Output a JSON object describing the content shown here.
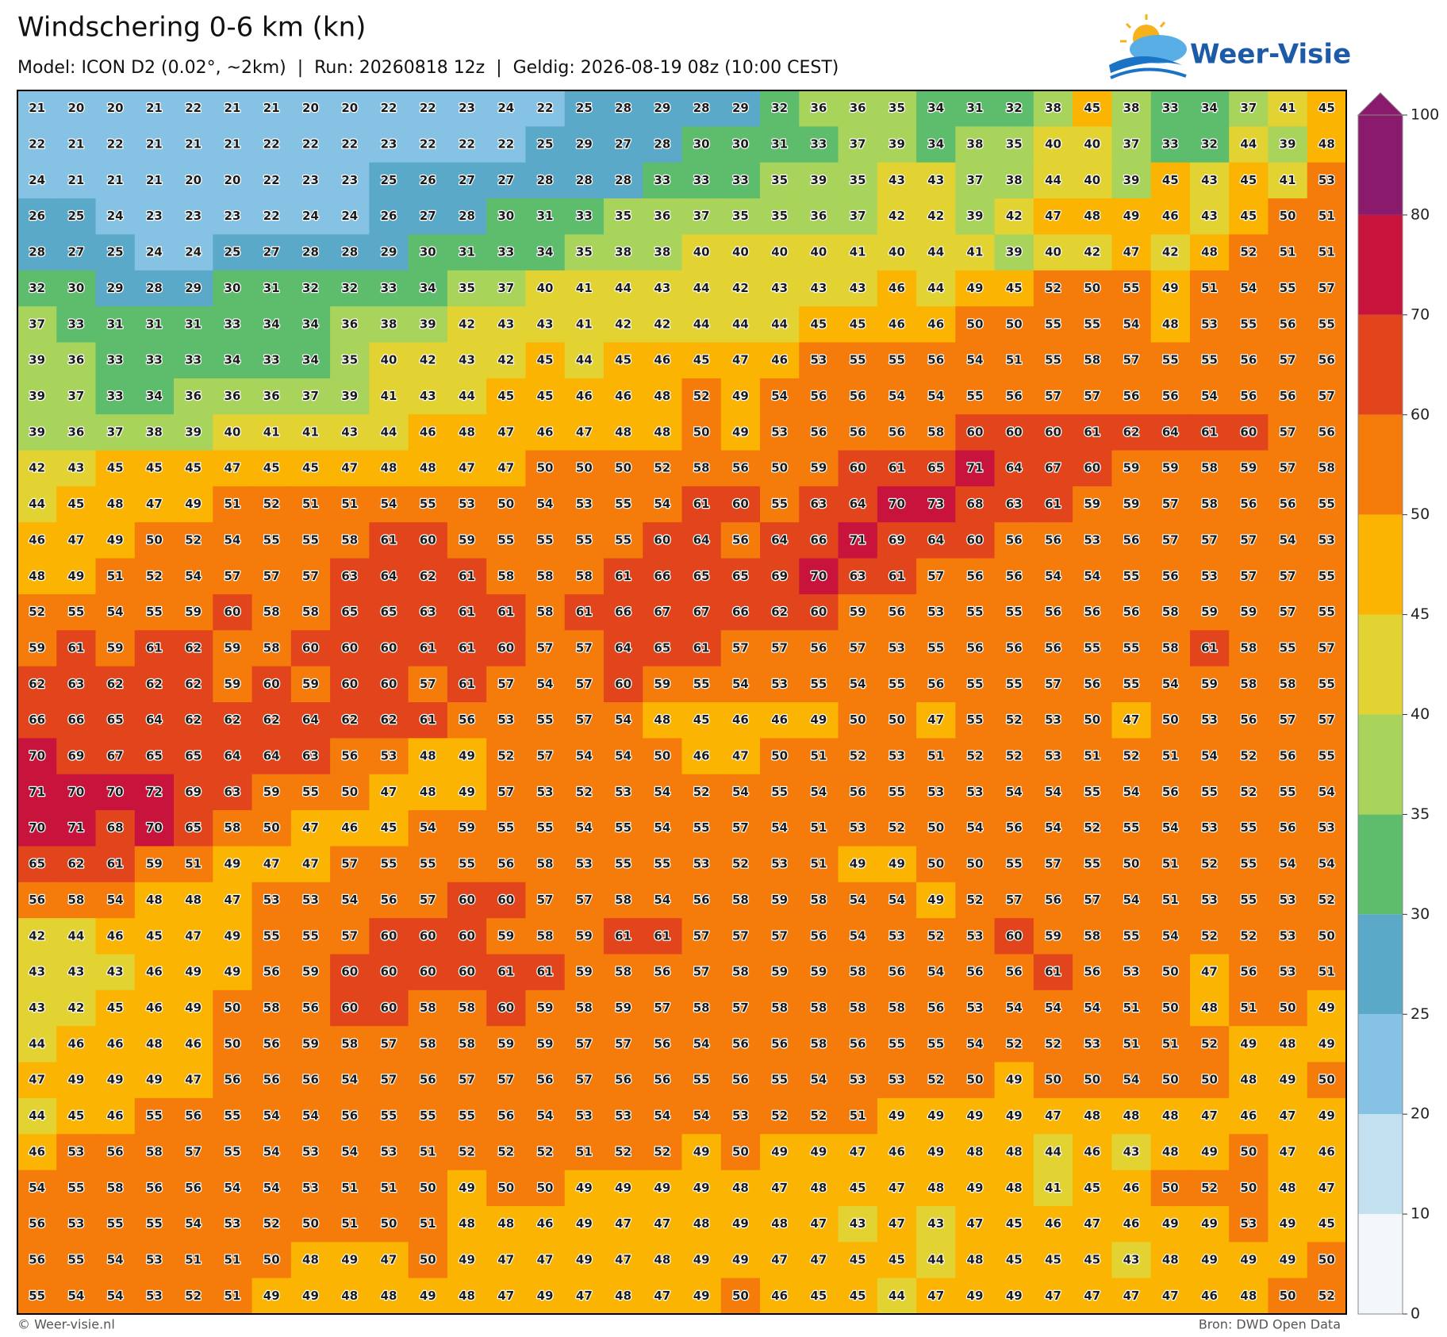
{
  "header": {
    "title": "Windschering 0-6 km (kn)",
    "subtitle": "Model: ICON D2 (0.02°, ~2km)  |  Run: 20260818 12z  |  Geldig: 2026-08-19 08z (10:00 CEST)",
    "logo": "Weer-Visie"
  },
  "map": {
    "grid": [
      [
        21,
        20,
        20,
        21,
        22,
        21,
        21,
        20,
        20,
        22,
        22,
        23,
        24,
        22,
        25,
        28,
        29,
        28,
        29,
        32,
        36,
        36,
        35,
        34,
        31,
        32,
        38,
        45,
        38,
        33,
        34,
        37,
        41,
        45
      ],
      [
        22,
        21,
        22,
        21,
        21,
        21,
        22,
        22,
        22,
        23,
        22,
        22,
        22,
        25,
        29,
        27,
        28,
        30,
        30,
        31,
        33,
        37,
        39,
        34,
        38,
        35,
        40,
        40,
        37,
        33,
        32,
        44,
        39,
        48
      ],
      [
        24,
        21,
        21,
        21,
        20,
        20,
        22,
        23,
        23,
        25,
        26,
        27,
        27,
        28,
        28,
        28,
        33,
        33,
        33,
        35,
        39,
        35,
        43,
        43,
        37,
        38,
        44,
        40,
        39,
        45,
        43,
        45,
        41,
        53
      ],
      [
        26,
        25,
        24,
        23,
        23,
        23,
        22,
        24,
        24,
        26,
        27,
        28,
        30,
        31,
        33,
        35,
        36,
        37,
        35,
        35,
        36,
        37,
        42,
        42,
        39,
        42,
        47,
        48,
        49,
        46,
        43,
        45,
        50,
        51
      ],
      [
        28,
        27,
        25,
        24,
        24,
        25,
        27,
        28,
        28,
        29,
        30,
        31,
        33,
        34,
        35,
        38,
        38,
        40,
        40,
        40,
        40,
        41,
        40,
        44,
        41,
        39,
        40,
        42,
        47,
        42,
        48,
        52,
        51,
        51
      ],
      [
        32,
        30,
        29,
        28,
        29,
        30,
        31,
        32,
        32,
        33,
        34,
        35,
        37,
        40,
        41,
        44,
        43,
        44,
        42,
        43,
        43,
        43,
        46,
        44,
        49,
        45,
        52,
        50,
        55,
        49,
        51,
        54,
        55,
        57
      ],
      [
        37,
        33,
        31,
        31,
        31,
        33,
        34,
        34,
        36,
        38,
        39,
        42,
        43,
        43,
        41,
        42,
        42,
        44,
        44,
        44,
        45,
        45,
        46,
        46,
        50,
        50,
        55,
        55,
        54,
        48,
        53,
        55,
        56,
        55
      ],
      [
        39,
        36,
        33,
        33,
        33,
        34,
        33,
        34,
        35,
        40,
        42,
        43,
        42,
        45,
        44,
        45,
        46,
        45,
        47,
        46,
        53,
        55,
        55,
        56,
        54,
        51,
        55,
        58,
        57,
        55,
        55,
        56,
        57,
        56
      ],
      [
        39,
        37,
        33,
        34,
        36,
        36,
        36,
        37,
        39,
        41,
        43,
        44,
        45,
        45,
        46,
        46,
        48,
        52,
        49,
        54,
        56,
        56,
        54,
        54,
        55,
        56,
        57,
        57,
        56,
        56,
        54,
        56,
        56,
        57
      ],
      [
        39,
        36,
        37,
        38,
        39,
        40,
        41,
        41,
        43,
        44,
        46,
        48,
        47,
        46,
        47,
        48,
        48,
        50,
        49,
        53,
        56,
        56,
        56,
        58,
        60,
        60,
        60,
        61,
        62,
        64,
        61,
        60,
        57,
        56
      ],
      [
        42,
        43,
        45,
        45,
        45,
        47,
        45,
        45,
        47,
        48,
        48,
        47,
        47,
        50,
        50,
        50,
        52,
        58,
        56,
        50,
        59,
        60,
        61,
        65,
        71,
        64,
        67,
        60,
        59,
        59,
        58,
        59,
        57,
        58
      ],
      [
        44,
        45,
        48,
        47,
        49,
        51,
        52,
        51,
        51,
        54,
        55,
        53,
        50,
        54,
        53,
        55,
        54,
        61,
        60,
        55,
        63,
        64,
        70,
        73,
        68,
        63,
        61,
        59,
        59,
        57,
        58,
        56,
        56,
        55
      ],
      [
        46,
        47,
        49,
        50,
        52,
        54,
        55,
        55,
        58,
        61,
        60,
        59,
        55,
        55,
        55,
        55,
        60,
        64,
        56,
        64,
        66,
        71,
        69,
        64,
        60,
        56,
        56,
        53,
        56,
        57,
        57,
        57,
        54,
        53
      ],
      [
        48,
        49,
        51,
        52,
        54,
        57,
        57,
        57,
        63,
        64,
        62,
        61,
        58,
        58,
        58,
        61,
        66,
        65,
        65,
        69,
        70,
        63,
        61,
        57,
        56,
        56,
        54,
        54,
        55,
        56,
        53,
        57,
        57,
        55
      ],
      [
        52,
        55,
        54,
        55,
        59,
        60,
        58,
        58,
        65,
        65,
        63,
        61,
        61,
        58,
        61,
        66,
        67,
        67,
        66,
        62,
        60,
        59,
        56,
        53,
        55,
        55,
        56,
        56,
        56,
        58,
        59,
        59,
        57,
        55
      ],
      [
        59,
        61,
        59,
        61,
        62,
        59,
        58,
        60,
        60,
        60,
        61,
        61,
        60,
        57,
        57,
        64,
        65,
        61,
        57,
        57,
        56,
        57,
        53,
        55,
        56,
        56,
        56,
        55,
        55,
        58,
        61,
        58,
        55,
        57
      ],
      [
        62,
        63,
        62,
        62,
        62,
        59,
        60,
        59,
        60,
        60,
        57,
        61,
        57,
        54,
        57,
        60,
        59,
        55,
        54,
        53,
        55,
        54,
        55,
        56,
        55,
        55,
        57,
        56,
        55,
        54,
        59,
        58,
        58,
        55
      ],
      [
        66,
        66,
        65,
        64,
        62,
        62,
        62,
        64,
        62,
        62,
        61,
        56,
        53,
        55,
        57,
        54,
        48,
        45,
        46,
        46,
        49,
        50,
        50,
        47,
        55,
        52,
        53,
        50,
        47,
        50,
        53,
        56,
        57,
        57
      ],
      [
        70,
        69,
        67,
        65,
        65,
        64,
        64,
        63,
        56,
        53,
        48,
        49,
        52,
        57,
        54,
        54,
        50,
        46,
        47,
        50,
        51,
        52,
        53,
        51,
        52,
        52,
        53,
        51,
        52,
        51,
        54,
        52,
        56,
        55
      ],
      [
        71,
        70,
        70,
        72,
        69,
        63,
        59,
        55,
        50,
        47,
        48,
        49,
        57,
        53,
        52,
        53,
        54,
        52,
        54,
        55,
        54,
        56,
        55,
        53,
        53,
        54,
        54,
        55,
        54,
        56,
        55,
        52,
        55,
        54
      ],
      [
        70,
        71,
        68,
        70,
        65,
        58,
        50,
        47,
        46,
        45,
        54,
        59,
        55,
        55,
        54,
        55,
        54,
        55,
        57,
        54,
        51,
        53,
        52,
        50,
        54,
        56,
        54,
        52,
        55,
        54,
        53,
        55,
        56,
        53
      ],
      [
        65,
        62,
        61,
        59,
        51,
        49,
        47,
        47,
        57,
        55,
        55,
        55,
        56,
        58,
        53,
        55,
        55,
        53,
        52,
        53,
        51,
        49,
        49,
        50,
        50,
        55,
        57,
        55,
        50,
        51,
        52,
        55,
        54,
        54
      ],
      [
        56,
        58,
        54,
        48,
        48,
        47,
        53,
        53,
        54,
        56,
        57,
        60,
        60,
        57,
        57,
        58,
        54,
        56,
        58,
        59,
        58,
        54,
        54,
        49,
        52,
        57,
        56,
        57,
        54,
        51,
        53,
        55,
        53,
        52
      ],
      [
        42,
        44,
        46,
        45,
        47,
        49,
        55,
        55,
        57,
        60,
        60,
        60,
        59,
        58,
        59,
        61,
        61,
        57,
        57,
        57,
        56,
        54,
        53,
        52,
        53,
        60,
        59,
        58,
        55,
        54,
        52,
        52,
        53,
        50
      ],
      [
        43,
        43,
        43,
        46,
        49,
        49,
        56,
        59,
        60,
        60,
        60,
        60,
        61,
        61,
        59,
        58,
        56,
        57,
        58,
        59,
        59,
        58,
        56,
        54,
        56,
        56,
        61,
        56,
        53,
        50,
        47,
        56,
        53,
        51
      ],
      [
        43,
        42,
        45,
        46,
        49,
        50,
        58,
        56,
        60,
        60,
        58,
        58,
        60,
        59,
        58,
        59,
        57,
        58,
        57,
        58,
        58,
        58,
        58,
        56,
        53,
        54,
        54,
        54,
        51,
        50,
        48,
        51,
        50,
        49
      ],
      [
        44,
        46,
        46,
        48,
        46,
        50,
        56,
        59,
        58,
        57,
        58,
        58,
        59,
        59,
        57,
        57,
        56,
        54,
        56,
        56,
        58,
        56,
        55,
        55,
        54,
        52,
        52,
        53,
        51,
        51,
        52,
        49,
        48,
        49
      ],
      [
        47,
        49,
        49,
        49,
        47,
        56,
        56,
        56,
        54,
        57,
        56,
        57,
        57,
        56,
        57,
        56,
        56,
        55,
        56,
        55,
        54,
        53,
        53,
        52,
        50,
        49,
        50,
        50,
        54,
        50,
        50,
        48,
        49,
        50
      ],
      [
        44,
        45,
        46,
        55,
        56,
        55,
        54,
        54,
        56,
        55,
        55,
        55,
        56,
        54,
        53,
        53,
        54,
        54,
        53,
        52,
        52,
        51,
        49,
        49,
        49,
        49,
        47,
        48,
        48,
        48,
        47,
        46,
        47,
        49
      ],
      [
        46,
        53,
        56,
        58,
        57,
        55,
        54,
        53,
        54,
        53,
        51,
        52,
        52,
        52,
        51,
        52,
        52,
        49,
        50,
        49,
        49,
        47,
        46,
        49,
        48,
        48,
        44,
        46,
        43,
        48,
        49,
        50,
        47,
        46
      ],
      [
        54,
        55,
        58,
        56,
        56,
        54,
        54,
        53,
        51,
        51,
        50,
        49,
        50,
        50,
        49,
        49,
        49,
        49,
        48,
        47,
        48,
        45,
        47,
        48,
        49,
        48,
        41,
        45,
        46,
        50,
        52,
        50,
        48,
        47
      ],
      [
        56,
        53,
        55,
        55,
        54,
        53,
        52,
        50,
        51,
        50,
        51,
        48,
        48,
        46,
        49,
        47,
        47,
        48,
        49,
        48,
        47,
        43,
        47,
        43,
        47,
        45,
        46,
        47,
        46,
        49,
        49,
        53,
        49,
        45
      ],
      [
        56,
        55,
        54,
        53,
        51,
        51,
        50,
        48,
        49,
        47,
        50,
        49,
        47,
        47,
        49,
        47,
        48,
        49,
        49,
        47,
        47,
        45,
        45,
        44,
        48,
        45,
        45,
        45,
        43,
        48,
        49,
        49,
        49,
        50
      ],
      [
        55,
        54,
        54,
        53,
        52,
        51,
        49,
        49,
        48,
        48,
        49,
        48,
        47,
        49,
        47,
        48,
        47,
        49,
        50,
        46,
        45,
        45,
        44,
        47,
        49,
        49,
        47,
        47,
        47,
        47,
        46,
        48,
        50,
        52
      ]
    ]
  },
  "colorbar": {
    "levels": [
      0,
      10,
      20,
      25,
      30,
      35,
      40,
      45,
      50,
      60,
      70,
      80,
      100
    ],
    "colors": [
      "#f3f7fb",
      "#c3e1f1",
      "#86c2e4",
      "#5aa9c9",
      "#5dbd6c",
      "#a9d45b",
      "#e2d232",
      "#fbb402",
      "#f57b0b",
      "#e2451c",
      "#c8143c",
      "#8a1a6b"
    ]
  },
  "footer": {
    "left": "© Weer-visie.nl",
    "right": "Bron: DWD Open Data"
  }
}
